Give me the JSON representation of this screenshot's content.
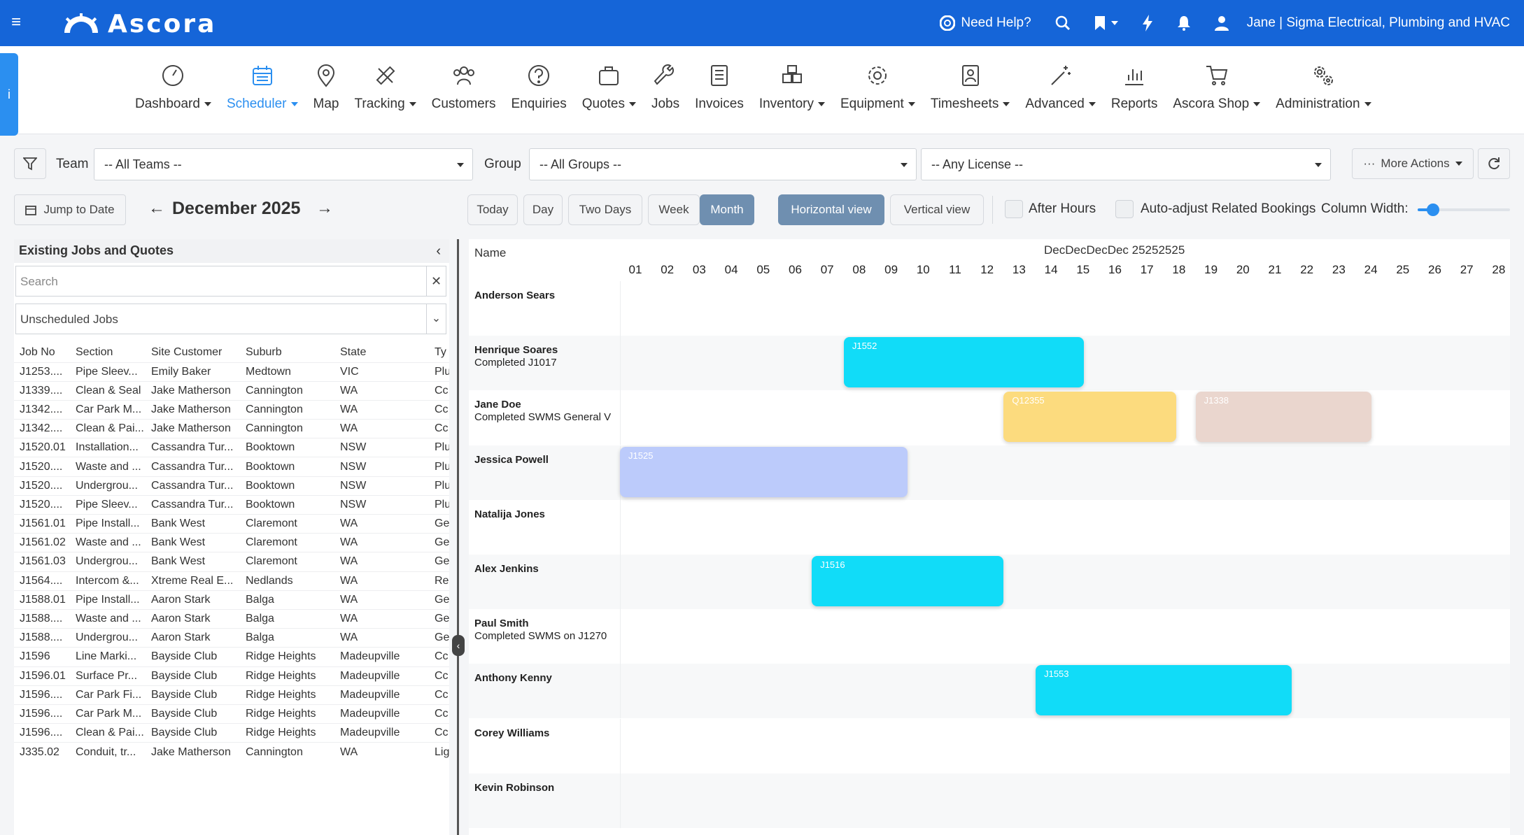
{
  "topbar": {
    "brand": "Ascora",
    "help": "Need Help?",
    "user": "Jane | Sigma Electrical, Plumbing and HVAC"
  },
  "menu": [
    {
      "label": "Dashboard",
      "icon": "dashboard-icon",
      "caret": true
    },
    {
      "label": "Scheduler",
      "icon": "calendar-icon",
      "caret": true,
      "active": true
    },
    {
      "label": "Map",
      "icon": "map-pin-icon",
      "caret": false
    },
    {
      "label": "Tracking",
      "icon": "satellite-icon",
      "caret": true
    },
    {
      "label": "Customers",
      "icon": "customers-icon",
      "caret": false
    },
    {
      "label": "Enquiries",
      "icon": "question-icon",
      "caret": false
    },
    {
      "label": "Quotes",
      "icon": "briefcase-icon",
      "caret": true
    },
    {
      "label": "Jobs",
      "icon": "wrench-icon",
      "caret": false
    },
    {
      "label": "Invoices",
      "icon": "invoice-icon",
      "caret": false
    },
    {
      "label": "Inventory",
      "icon": "boxes-icon",
      "caret": true
    },
    {
      "label": "Equipment",
      "icon": "gear-icon",
      "caret": true
    },
    {
      "label": "Timesheets",
      "icon": "timesheet-icon",
      "caret": true
    },
    {
      "label": "Advanced",
      "icon": "magic-wand-icon",
      "caret": true
    },
    {
      "label": "Reports",
      "icon": "bar-chart-icon",
      "caret": false
    },
    {
      "label": "Ascora Shop",
      "icon": "cart-icon",
      "caret": true
    },
    {
      "label": "Administration",
      "icon": "gears-icon",
      "caret": true
    }
  ],
  "filters": {
    "team_label": "Team",
    "team_value": "-- All Teams --",
    "group_label": "Group",
    "group_value": "-- All Groups --",
    "license_value": "-- Any License --",
    "more_actions": "More Actions"
  },
  "nav": {
    "jump": "Jump to Date",
    "month_title": "December 2025",
    "today": "Today",
    "day": "Day",
    "two_days": "Two Days",
    "week": "Week",
    "month": "Month",
    "horizontal": "Horizontal view",
    "vertical": "Vertical view",
    "after_hours": "After Hours",
    "auto_adjust": "Auto-adjust Related Bookings",
    "column_width": "Column Width:",
    "column_width_level": 0.1
  },
  "left": {
    "header": "Existing Jobs and Quotes",
    "search_placeholder": "Search",
    "filter_value": "Unscheduled Jobs",
    "columns": [
      "Job No",
      "Section",
      "Site Customer",
      "Suburb",
      "State",
      "Ty"
    ],
    "rows": [
      [
        "J1253....",
        "Pipe Sleev...",
        "Emily Baker",
        "Medtown",
        "VIC",
        "Plu"
      ],
      [
        "J1339....",
        "Clean & Seal",
        "Jake Matherson",
        "Cannington",
        "WA",
        "Cc"
      ],
      [
        "J1342....",
        "Car Park M...",
        "Jake Matherson",
        "Cannington",
        "WA",
        "Cc"
      ],
      [
        "J1342....",
        "Clean & Pai...",
        "Jake Matherson",
        "Cannington",
        "WA",
        "Cc"
      ],
      [
        "J1520.01",
        "Installation...",
        "Cassandra Tur...",
        "Booktown",
        "NSW",
        "Plu"
      ],
      [
        "J1520....",
        "Waste and ...",
        "Cassandra Tur...",
        "Booktown",
        "NSW",
        "Plu"
      ],
      [
        "J1520....",
        "Undergrou...",
        "Cassandra Tur...",
        "Booktown",
        "NSW",
        "Plu"
      ],
      [
        "J1520....",
        "Pipe Sleev...",
        "Cassandra Tur...",
        "Booktown",
        "NSW",
        "Plu"
      ],
      [
        "J1561.01",
        "Pipe Install...",
        "Bank West",
        "Claremont",
        "WA",
        "Ge"
      ],
      [
        "J1561.02",
        "Waste and ...",
        "Bank West",
        "Claremont",
        "WA",
        "Ge"
      ],
      [
        "J1561.03",
        "Undergrou...",
        "Bank West",
        "Claremont",
        "WA",
        "Ge"
      ],
      [
        "J1564....",
        "Intercom &...",
        "Xtreme Real E...",
        "Nedlands",
        "WA",
        "Re"
      ],
      [
        "J1588.01",
        "Pipe Install...",
        "Aaron Stark",
        "Balga",
        "WA",
        "Ge"
      ],
      [
        "J1588....",
        "Waste and ...",
        "Aaron Stark",
        "Balga",
        "WA",
        "Ge"
      ],
      [
        "J1588....",
        "Undergrou...",
        "Aaron Stark",
        "Balga",
        "WA",
        "Ge"
      ],
      [
        "J1596",
        "Line Marki...",
        "Bayside Club",
        "Ridge Heights",
        "Madeupville",
        "Cc"
      ],
      [
        "J1596.01",
        "Surface Pr...",
        "Bayside Club",
        "Ridge Heights",
        "Madeupville",
        "Cc"
      ],
      [
        "J1596....",
        "Car Park Fi...",
        "Bayside Club",
        "Ridge Heights",
        "Madeupville",
        "Cc"
      ],
      [
        "J1596....",
        "Car Park M...",
        "Bayside Club",
        "Ridge Heights",
        "Madeupville",
        "Cc"
      ],
      [
        "J1596....",
        "Clean & Pai...",
        "Bayside Club",
        "Ridge Heights",
        "Madeupville",
        "Cc"
      ],
      [
        "J335.02",
        "Conduit, tr...",
        "Jake Matherson",
        "Cannington",
        "WA",
        "Lig"
      ]
    ]
  },
  "grid": {
    "name_header": "Name",
    "month_header": "DecDecDecDec 25252525",
    "days": [
      "01",
      "02",
      "03",
      "04",
      "05",
      "06",
      "07",
      "08",
      "09",
      "10",
      "11",
      "12",
      "13",
      "14",
      "15",
      "16",
      "17",
      "18",
      "19",
      "20",
      "21",
      "22",
      "23",
      "24",
      "25",
      "26",
      "27",
      "28"
    ],
    "staff": [
      {
        "name": "Anderson Sears",
        "sub": ""
      },
      {
        "name": "Henrique Soares",
        "sub": "Completed J1017"
      },
      {
        "name": "Jane Doe",
        "sub": "Completed SWMS General V"
      },
      {
        "name": "Jessica Powell",
        "sub": ""
      },
      {
        "name": "Natalija Jones",
        "sub": ""
      },
      {
        "name": "Alex Jenkins",
        "sub": ""
      },
      {
        "name": "Paul Smith",
        "sub": "Completed SWMS on J1270"
      },
      {
        "name": "Anthony Kenny",
        "sub": ""
      },
      {
        "name": "Corey Williams",
        "sub": ""
      },
      {
        "name": "Kevin Robinson",
        "sub": ""
      }
    ],
    "bookings": [
      {
        "row": 1,
        "label": "J1552",
        "start_day": 8,
        "end_day": 15.5,
        "color": "#11dcf8"
      },
      {
        "row": 2,
        "label": "Q12355",
        "start_day": 13,
        "end_day": 18.4,
        "color": "#fcdb7e"
      },
      {
        "row": 2,
        "label": "J1338",
        "start_day": 19,
        "end_day": 24.5,
        "color": "#ead6ce"
      },
      {
        "row": 3,
        "label": "J1525",
        "start_day": 1,
        "end_day": 10,
        "color": "#bccbfb"
      },
      {
        "row": 5,
        "label": "J1516",
        "start_day": 7,
        "end_day": 13,
        "color": "#11dcf8"
      },
      {
        "row": 7,
        "label": "J1553",
        "start_day": 14,
        "end_day": 22,
        "color": "#11dcf8"
      }
    ]
  }
}
